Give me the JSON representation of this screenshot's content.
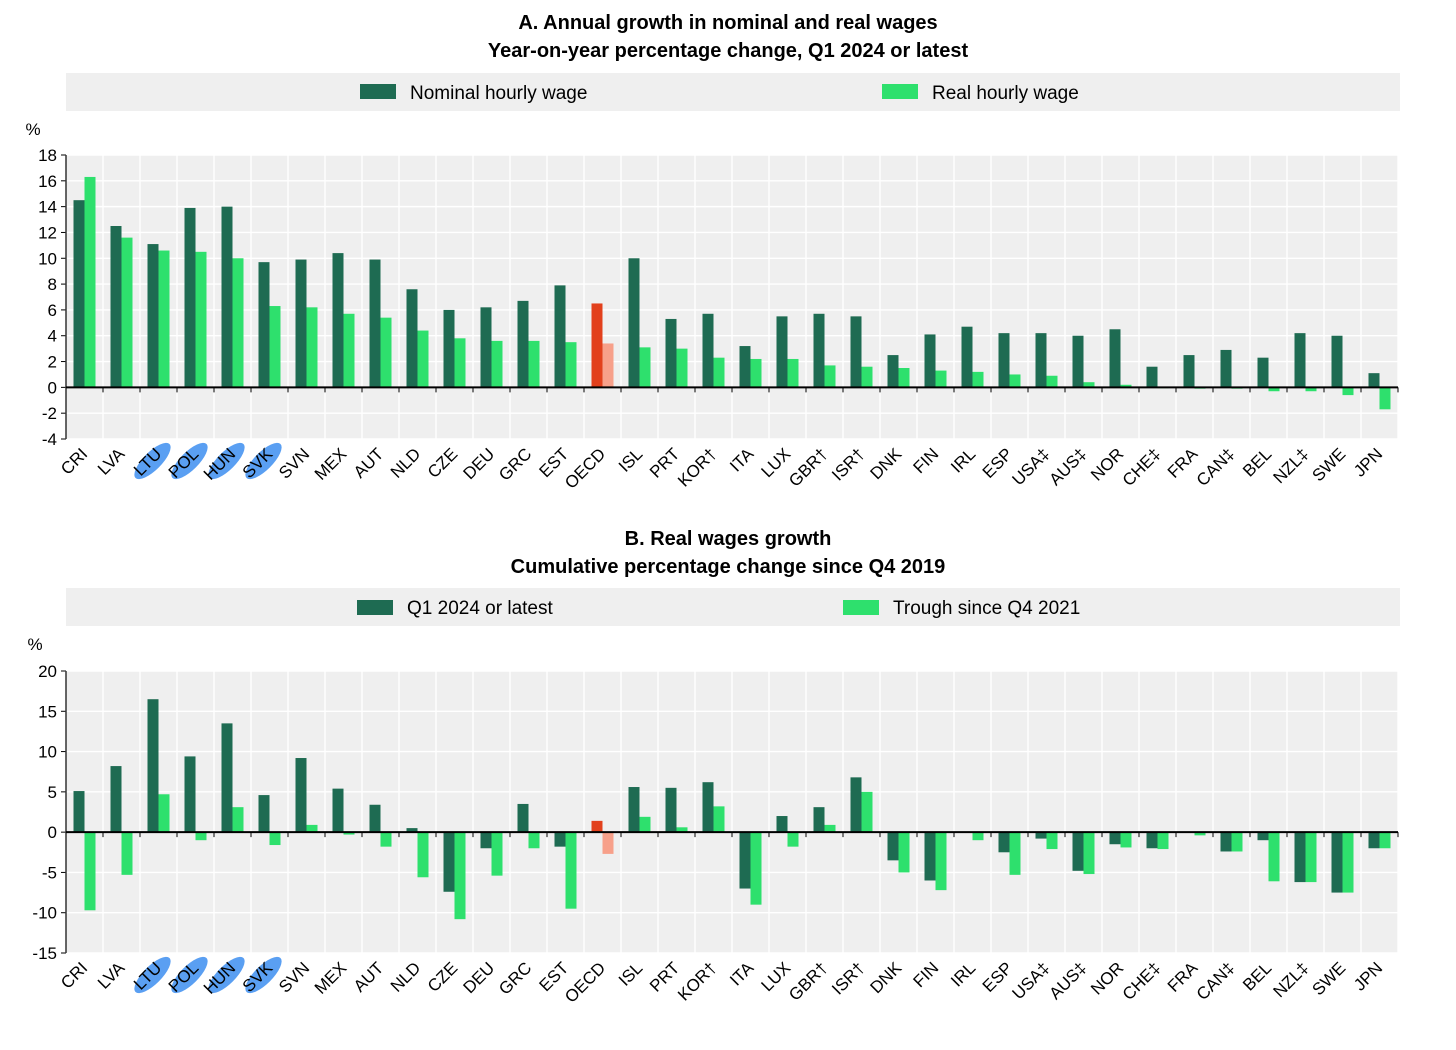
{
  "colors": {
    "nominal": "#1e6b52",
    "real": "#2ee06d",
    "oecd_dark": "#e2401c",
    "oecd_light": "#f7a08a",
    "highlight": "#3d8ef0",
    "plot_bg": "#efefef",
    "legend_bg": "#efefef",
    "axis": "#000000"
  },
  "highlighted_countries": [
    "LTU",
    "POL",
    "HUN",
    "SVK"
  ],
  "chart_data": [
    {
      "type": "bar",
      "title": "A. Annual growth in nominal and real wages",
      "subtitle": "Year-on-year percentage change, Q1 2024 or latest",
      "ylabel": "%",
      "xlabel": "",
      "ylim": [
        -4,
        18
      ],
      "yticks": [
        -4,
        -2,
        0,
        2,
        4,
        6,
        8,
        10,
        12,
        14,
        16,
        18
      ],
      "grid": true,
      "legend_position": "top",
      "categories": [
        "CRI",
        "LVA",
        "LTU",
        "POL",
        "HUN",
        "SVK",
        "SVN",
        "MEX",
        "AUT",
        "NLD",
        "CZE",
        "DEU",
        "GRC",
        "EST",
        "OECD",
        "ISL",
        "PRT",
        "KOR†",
        "ITA",
        "LUX",
        "GBR†",
        "ISR†",
        "DNK",
        "FIN",
        "IRL",
        "ESP",
        "USA‡",
        "AUS‡",
        "NOR",
        "CHE‡",
        "FRA",
        "CAN‡",
        "BEL",
        "NZL‡",
        "SWE",
        "JPN"
      ],
      "series": [
        {
          "name": "Nominal hourly wage",
          "values": [
            14.5,
            12.5,
            11.1,
            13.9,
            14.0,
            9.7,
            9.9,
            10.4,
            9.9,
            7.6,
            6.0,
            6.2,
            6.7,
            7.9,
            6.5,
            10.0,
            5.3,
            5.7,
            3.2,
            5.5,
            5.7,
            5.5,
            2.5,
            4.1,
            4.7,
            4.2,
            4.2,
            4.0,
            4.5,
            1.6,
            2.5,
            2.9,
            2.3,
            4.2,
            4.0,
            1.1
          ]
        },
        {
          "name": "Real hourly wage",
          "values": [
            16.3,
            11.6,
            10.6,
            10.5,
            10.0,
            6.3,
            6.2,
            5.7,
            5.4,
            4.4,
            3.8,
            3.6,
            3.6,
            3.5,
            3.4,
            3.1,
            3.0,
            2.3,
            2.2,
            2.2,
            1.7,
            1.6,
            1.5,
            1.3,
            1.2,
            1.0,
            0.9,
            0.4,
            0.2,
            0.0,
            -0.1,
            -0.1,
            -0.3,
            -0.3,
            -0.6,
            -1.7
          ]
        }
      ]
    },
    {
      "type": "bar",
      "title": "B. Real wages growth",
      "subtitle": "Cumulative percentage change since Q4 2019",
      "ylabel": "%",
      "xlabel": "",
      "ylim": [
        -15,
        20
      ],
      "yticks": [
        -15,
        -10,
        -5,
        0,
        5,
        10,
        15,
        20
      ],
      "grid": true,
      "legend_position": "top",
      "categories": [
        "CRI",
        "LVA",
        "LTU",
        "POL",
        "HUN",
        "SVK",
        "SVN",
        "MEX",
        "AUT",
        "NLD",
        "CZE",
        "DEU",
        "GRC",
        "EST",
        "OECD",
        "ISL",
        "PRT",
        "KOR†",
        "ITA",
        "LUX",
        "GBR†",
        "ISR†",
        "DNK",
        "FIN",
        "IRL",
        "ESP",
        "USA‡",
        "AUS‡",
        "NOR",
        "CHE‡",
        "FRA",
        "CAN‡",
        "BEL",
        "NZL‡",
        "SWE",
        "JPN"
      ],
      "series": [
        {
          "name": "Q1 2024 or latest",
          "values": [
            5.1,
            8.2,
            16.5,
            9.4,
            13.5,
            4.6,
            9.2,
            5.4,
            3.4,
            0.5,
            -7.4,
            -2.0,
            3.5,
            -1.8,
            1.4,
            5.6,
            5.5,
            6.2,
            -7.0,
            2.0,
            3.1,
            6.8,
            -3.5,
            -6.0,
            0.0,
            -2.5,
            -0.8,
            -4.8,
            -1.5,
            -2.0,
            0.0,
            -2.4,
            -1.0,
            -6.2,
            -7.5,
            -2.0
          ]
        },
        {
          "name": "Trough since Q4 2021",
          "values": [
            -9.7,
            -5.3,
            4.7,
            -1.0,
            3.1,
            -1.6,
            0.9,
            -0.3,
            -1.8,
            -5.6,
            -10.8,
            -5.4,
            -2.0,
            -9.5,
            -2.7,
            1.9,
            0.6,
            3.2,
            -9.0,
            -1.8,
            0.9,
            5.0,
            -5.0,
            -7.2,
            -1.0,
            -5.3,
            -2.1,
            -5.2,
            -1.9,
            -2.1,
            -0.4,
            -2.4,
            -6.1,
            -6.2,
            -7.5,
            -2.0
          ]
        }
      ]
    }
  ]
}
